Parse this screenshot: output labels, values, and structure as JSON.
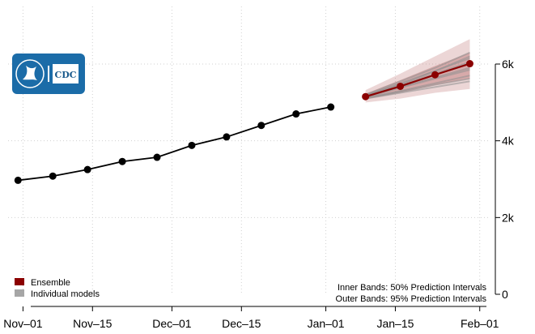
{
  "chart_data": {
    "type": "line",
    "x_range": [
      "2020-10-29",
      "2021-02-03"
    ],
    "ylim": [
      0,
      7500
    ],
    "grid": true,
    "x_ticks": [
      {
        "date": "2020-11-01",
        "label": "Nov–01"
      },
      {
        "date": "2020-11-15",
        "label": "Nov–15"
      },
      {
        "date": "2020-12-01",
        "label": "Dec–01"
      },
      {
        "date": "2020-12-15",
        "label": "Dec–15"
      },
      {
        "date": "2021-01-01",
        "label": "Jan–01"
      },
      {
        "date": "2021-01-15",
        "label": "Jan–15"
      },
      {
        "date": "2021-02-01",
        "label": "Feb–01"
      }
    ],
    "y_ticks": [
      {
        "value": 0,
        "label": "0"
      },
      {
        "value": 2000,
        "label": "2k"
      },
      {
        "value": 4000,
        "label": "4k"
      },
      {
        "value": 6000,
        "label": "6k"
      }
    ],
    "y_axis_side": "right",
    "observed": {
      "dates": [
        "2020-10-31",
        "2020-11-07",
        "2020-11-14",
        "2020-11-21",
        "2020-11-28",
        "2020-12-05",
        "2020-12-12",
        "2020-12-19",
        "2020-12-26",
        "2021-01-02"
      ],
      "values": [
        2970,
        3080,
        3250,
        3460,
        3570,
        3880,
        4100,
        4400,
        4700,
        4880
      ]
    },
    "series": [
      {
        "name": "Ensemble",
        "color": "#8b0000",
        "dates": [
          "2021-01-09",
          "2021-01-16",
          "2021-01-23",
          "2021-01-30"
        ],
        "values": [
          5150,
          5420,
          5720,
          6010
        ],
        "inner_band": {
          "lower": [
            5080,
            5250,
            5450,
            5620
          ],
          "upper": [
            5230,
            5580,
            5950,
            6300
          ]
        },
        "outer_band": {
          "lower": [
            5000,
            5100,
            5250,
            5350
          ],
          "upper": [
            5320,
            5750,
            6200,
            6650
          ]
        }
      },
      {
        "name": "Individual models",
        "color": "#9e9e9e",
        "models": [
          [
            5180,
            5470,
            5820,
            6200
          ],
          [
            5120,
            5300,
            5500,
            5700
          ],
          [
            5160,
            5400,
            5650,
            5900
          ],
          [
            5100,
            5250,
            5400,
            5550
          ],
          [
            5200,
            5550,
            5900,
            6300
          ],
          [
            5140,
            5380,
            5620,
            5850
          ],
          [
            5170,
            5450,
            5750,
            6050
          ],
          [
            5110,
            5280,
            5460,
            5620
          ],
          [
            5190,
            5500,
            5820,
            6150
          ]
        ]
      }
    ],
    "legend": {
      "position": "bottom-left",
      "items": [
        {
          "label": "Ensemble",
          "color": "#8b0000"
        },
        {
          "label": "Individual models",
          "color": "#a6a6a6"
        }
      ]
    },
    "notes": [
      "Inner Bands: 50% Prediction Intervals",
      "Outer Bands: 95% Prediction Intervals"
    ]
  },
  "logo": {
    "label": "CDC"
  }
}
